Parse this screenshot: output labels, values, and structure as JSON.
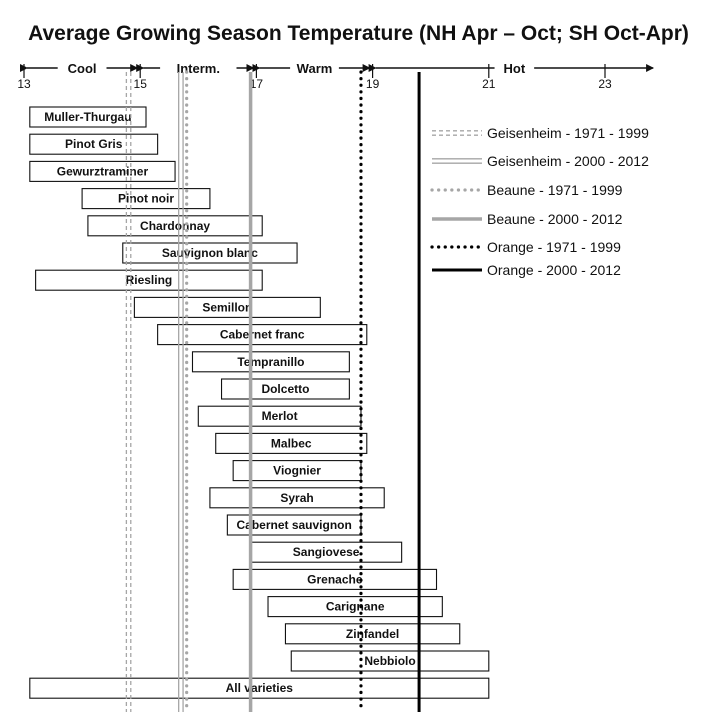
{
  "chart_data": {
    "type": "bar",
    "subtype": "floating-range",
    "title": "Average Growing Season Temperature (NH Apr – Oct; SH Oct-Apr)",
    "xlabel": "",
    "ylabel": "",
    "xlim": [
      13,
      24
    ],
    "x_ticks": [
      13,
      15,
      17,
      19,
      21,
      23
    ],
    "grid": false,
    "legend_position": "right",
    "zones": [
      {
        "label": "Cool",
        "from": 13,
        "to": 15
      },
      {
        "label": "Interm.",
        "from": 15,
        "to": 17
      },
      {
        "label": "Warm",
        "from": 17,
        "to": 19
      },
      {
        "label": "Hot",
        "from": 19,
        "to": 24
      }
    ],
    "ranges": [
      {
        "variety": "Muller-Thurgau",
        "min": 13.1,
        "max": 15.1
      },
      {
        "variety": "Pinot Gris",
        "min": 13.1,
        "max": 15.3
      },
      {
        "variety": "Gewurztraminer",
        "min": 13.1,
        "max": 15.6
      },
      {
        "variety": "Pinot noir",
        "min": 14.0,
        "max": 16.2
      },
      {
        "variety": "Chardonnay",
        "min": 14.1,
        "max": 17.1
      },
      {
        "variety": "Sauvignon blanc",
        "min": 14.7,
        "max": 17.7
      },
      {
        "variety": "Riesling",
        "min": 13.2,
        "max": 17.1
      },
      {
        "variety": "Semillon",
        "min": 14.9,
        "max": 18.1
      },
      {
        "variety": "Cabernet franc",
        "min": 15.3,
        "max": 18.9
      },
      {
        "variety": "Tempranillo",
        "min": 15.9,
        "max": 18.6
      },
      {
        "variety": "Dolcetto",
        "min": 16.4,
        "max": 18.6
      },
      {
        "variety": "Merlot",
        "min": 16.0,
        "max": 18.8
      },
      {
        "variety": "Malbec",
        "min": 16.3,
        "max": 18.9
      },
      {
        "variety": "Viognier",
        "min": 16.6,
        "max": 18.8
      },
      {
        "variety": "Syrah",
        "min": 16.2,
        "max": 19.2
      },
      {
        "variety": "Cabernet sauvignon",
        "min": 16.5,
        "max": 18.8
      },
      {
        "variety": "Sangiovese",
        "min": 16.9,
        "max": 19.5
      },
      {
        "variety": "Grenache",
        "min": 16.6,
        "max": 20.1
      },
      {
        "variety": "Carignane",
        "min": 17.2,
        "max": 20.2
      },
      {
        "variety": "Zinfandel",
        "min": 17.5,
        "max": 20.5
      },
      {
        "variety": "Nebbiolo",
        "min": 17.6,
        "max": 21.0
      },
      {
        "variety": "All varieties",
        "min": 13.1,
        "max": 21.0
      }
    ],
    "reference_lines": [
      {
        "name": "Geisenheim - 1971 - 1999",
        "value": 14.8,
        "style": "double-dashed",
        "color": "#a6a6a6"
      },
      {
        "name": "Geisenheim - 2000 - 2012",
        "value": 15.7,
        "style": "double",
        "color": "#a6a6a6"
      },
      {
        "name": "Beaune - 1971 - 1999",
        "value": 15.8,
        "style": "dotted",
        "color": "#a6a6a6"
      },
      {
        "name": "Beaune - 2000 - 2012",
        "value": 16.9,
        "style": "solid",
        "color": "#a6a6a6"
      },
      {
        "name": "Orange - 1971 - 1999",
        "value": 18.8,
        "style": "dotted",
        "color": "#000000"
      },
      {
        "name": "Orange - 2000 - 2012",
        "value": 19.8,
        "style": "solid",
        "color": "#000000"
      }
    ]
  }
}
